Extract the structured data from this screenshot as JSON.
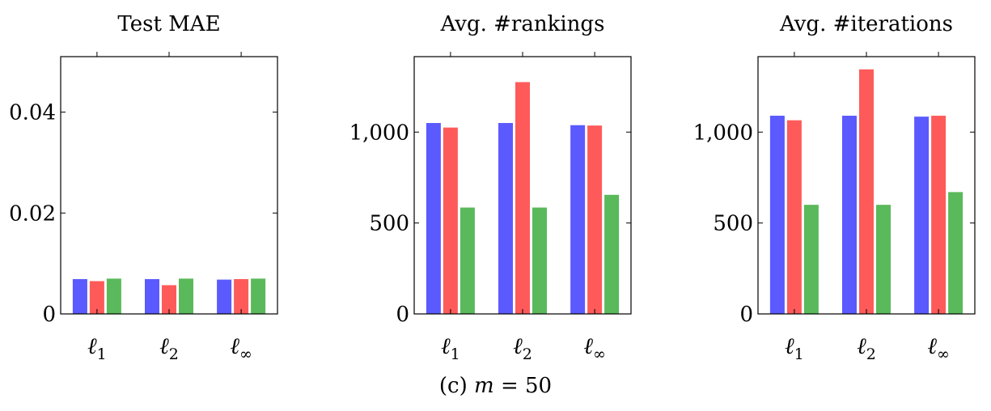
{
  "colors": {
    "blue": "#5a5aff",
    "red": "#ff5a5a",
    "green": "#5ab95a",
    "axis": "#000000"
  },
  "chart_data": [
    {
      "type": "bar",
      "title": "Test MAE",
      "categories": [
        "ℓ1",
        "ℓ2",
        "ℓ∞"
      ],
      "category_base": [
        "ℓ",
        "ℓ",
        "ℓ"
      ],
      "category_sub": [
        "1",
        "2",
        "∞"
      ],
      "ylim": [
        0,
        0.051
      ],
      "yticks": [
        0,
        0.02,
        0.04
      ],
      "ytick_labels": [
        "0",
        "0.02",
        "0.04"
      ],
      "series": [
        {
          "color": "#5a5aff",
          "values": [
            0.0069,
            0.0069,
            0.0068
          ]
        },
        {
          "color": "#ff5a5a",
          "values": [
            0.0065,
            0.0057,
            0.0069
          ]
        },
        {
          "color": "#5ab95a",
          "values": [
            0.007,
            0.007,
            0.007
          ]
        }
      ]
    },
    {
      "type": "bar",
      "title": "Avg. #rankings",
      "categories": [
        "ℓ1",
        "ℓ2",
        "ℓ∞"
      ],
      "category_base": [
        "ℓ",
        "ℓ",
        "ℓ"
      ],
      "category_sub": [
        "1",
        "2",
        "∞"
      ],
      "ylim": [
        0,
        1415
      ],
      "yticks": [
        0,
        500,
        1000
      ],
      "ytick_labels": [
        "0",
        "500",
        "1,000"
      ],
      "series": [
        {
          "color": "#5a5aff",
          "values": [
            1050,
            1050,
            1038
          ]
        },
        {
          "color": "#ff5a5a",
          "values": [
            1025,
            1275,
            1036
          ]
        },
        {
          "color": "#5ab95a",
          "values": [
            585,
            585,
            655
          ]
        }
      ]
    },
    {
      "type": "bar",
      "title": "Avg. #iterations",
      "categories": [
        "ℓ1",
        "ℓ2",
        "ℓ∞"
      ],
      "category_base": [
        "ℓ",
        "ℓ",
        "ℓ"
      ],
      "category_sub": [
        "1",
        "2",
        "∞"
      ],
      "ylim": [
        0,
        1415
      ],
      "yticks": [
        0,
        500,
        1000
      ],
      "ytick_labels": [
        "0",
        "500",
        "1,000"
      ],
      "series": [
        {
          "color": "#5a5aff",
          "values": [
            1090,
            1090,
            1085
          ]
        },
        {
          "color": "#ff5a5a",
          "values": [
            1065,
            1345,
            1090
          ]
        },
        {
          "color": "#5ab95a",
          "values": [
            600,
            600,
            670
          ]
        }
      ]
    }
  ],
  "caption": {
    "label": "(c) ",
    "math": "m",
    "rest": " = 50"
  }
}
